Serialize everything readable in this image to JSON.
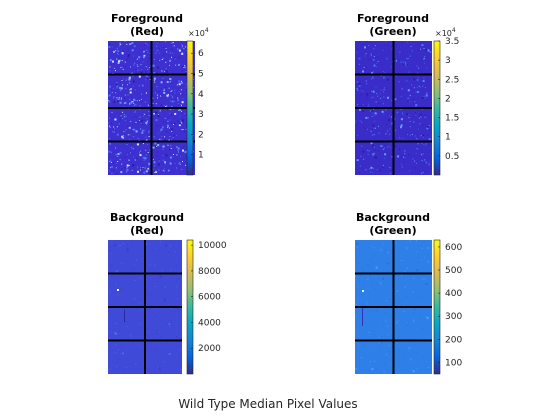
{
  "figure": {
    "caption": "Wild Type Median Pixel Values"
  },
  "chart_data": [
    {
      "type": "heatmap",
      "title_line1": "Foreground",
      "title_line2": "(Red)",
      "grid_blocks": {
        "cols": 2,
        "rows": 4
      },
      "colorbar": {
        "exponent_label": "×10",
        "exponent_power": "4",
        "range": [
          0,
          6.6
        ],
        "ticks": [
          1,
          2,
          3,
          4,
          5,
          6
        ],
        "tick_labels": [
          "1",
          "2",
          "3",
          "4",
          "5",
          "6"
        ]
      },
      "base_color": "#3d2fd0",
      "speckle": "dense-bright"
    },
    {
      "type": "heatmap",
      "title_line1": "Foreground",
      "title_line2": "(Green)",
      "grid_blocks": {
        "cols": 2,
        "rows": 4
      },
      "colorbar": {
        "exponent_label": "×10",
        "exponent_power": "4",
        "range": [
          0,
          3.5
        ],
        "ticks": [
          0.5,
          1,
          1.5,
          2,
          2.5,
          3,
          3.5
        ],
        "tick_labels": [
          "0.5",
          "1",
          "1.5",
          "2",
          "2.5",
          "3",
          "3.5"
        ]
      },
      "base_color": "#3a2cc8",
      "speckle": "sparse"
    },
    {
      "type": "heatmap",
      "title_line1": "Background",
      "title_line2": "(Red)",
      "grid_blocks": {
        "cols": 2,
        "rows": 4
      },
      "colorbar": {
        "exponent_label": "",
        "exponent_power": "",
        "range": [
          0,
          10400
        ],
        "ticks": [
          2000,
          4000,
          6000,
          8000,
          10000
        ],
        "tick_labels": [
          "2000",
          "4000",
          "6000",
          "8000",
          "10000"
        ]
      },
      "base_color": "#3f4ad8",
      "speckle": "few"
    },
    {
      "type": "heatmap",
      "title_line1": "Background",
      "title_line2": "(Green)",
      "grid_blocks": {
        "cols": 2,
        "rows": 4
      },
      "colorbar": {
        "exponent_label": "",
        "exponent_power": "",
        "range": [
          50,
          630
        ],
        "ticks": [
          100,
          200,
          300,
          400,
          500,
          600
        ],
        "tick_labels": [
          "100",
          "200",
          "300",
          "400",
          "500",
          "600"
        ]
      },
      "base_color": "#2f7fe8",
      "speckle": "few"
    }
  ]
}
